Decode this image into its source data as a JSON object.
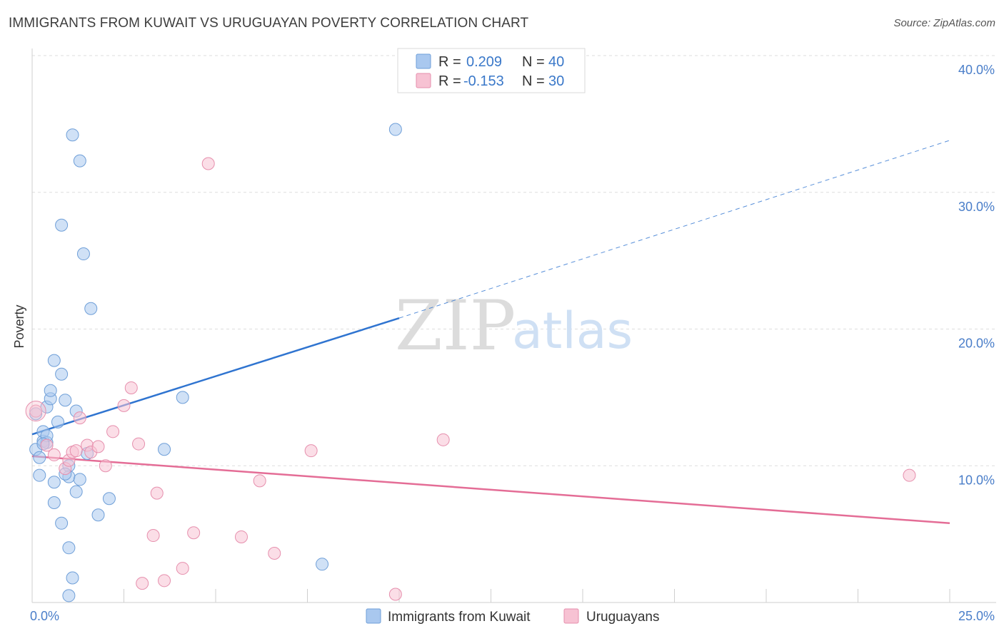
{
  "chart_data": {
    "type": "scatter",
    "title": "IMMIGRANTS FROM KUWAIT VS URUGUAYAN POVERTY CORRELATION CHART",
    "source": "Source: ZipAtlas.com",
    "xlabel": "",
    "ylabel": "Poverty",
    "xlim": [
      0,
      25
    ],
    "ylim": [
      0,
      40
    ],
    "x_ticks": [
      {
        "value": 0,
        "label": "0.0%"
      },
      {
        "value": 25,
        "label": "25.0%"
      }
    ],
    "y_ticks": [
      {
        "value": 10,
        "label": "10.0%"
      },
      {
        "value": 20,
        "label": "20.0%"
      },
      {
        "value": 30,
        "label": "30.0%"
      },
      {
        "value": 40,
        "label": "40.0%"
      }
    ],
    "watermark": {
      "zip": "ZIP",
      "atlas": "atlas"
    },
    "legend": {
      "r_label": "R =",
      "n_label": "N =",
      "entries": [
        {
          "r": "0.209",
          "n": "40"
        },
        {
          "r": "-0.153",
          "n": "30"
        }
      ]
    },
    "series": [
      {
        "name": "Immigrants from Kuwait",
        "color": "#a9c8ef",
        "stroke": "#6f9fd8",
        "line_color": "#2f74d0",
        "trend": {
          "x0": 0,
          "y0": 12.3,
          "x1": 10,
          "y1": 20.8,
          "dashed_to_x": 25,
          "dashed_to_y": 33.8
        },
        "points": [
          [
            0.1,
            11.2
          ],
          [
            0.1,
            13.8
          ],
          [
            0.2,
            10.6
          ],
          [
            0.3,
            11.8
          ],
          [
            0.3,
            12.5
          ],
          [
            0.2,
            9.3
          ],
          [
            0.4,
            11.7
          ],
          [
            0.4,
            14.3
          ],
          [
            0.4,
            12.2
          ],
          [
            0.5,
            14.9
          ],
          [
            0.5,
            15.5
          ],
          [
            0.6,
            17.7
          ],
          [
            0.6,
            7.3
          ],
          [
            0.6,
            8.8
          ],
          [
            0.7,
            13.2
          ],
          [
            0.8,
            27.6
          ],
          [
            0.8,
            5.8
          ],
          [
            0.8,
            16.7
          ],
          [
            0.9,
            14.8
          ],
          [
            1.0,
            10.0
          ],
          [
            1.0,
            9.2
          ],
          [
            1.0,
            4.0
          ],
          [
            1.1,
            1.8
          ],
          [
            1.0,
            0.5
          ],
          [
            1.1,
            34.2
          ],
          [
            1.2,
            14.0
          ],
          [
            1.2,
            8.1
          ],
          [
            1.3,
            9.0
          ],
          [
            1.3,
            32.3
          ],
          [
            1.4,
            25.5
          ],
          [
            1.5,
            10.9
          ],
          [
            1.6,
            21.5
          ],
          [
            1.8,
            6.4
          ],
          [
            2.1,
            7.6
          ],
          [
            3.6,
            11.2
          ],
          [
            4.1,
            15.0
          ],
          [
            7.9,
            2.8
          ],
          [
            9.9,
            34.6
          ],
          [
            0.3,
            11.6
          ],
          [
            0.9,
            9.4
          ]
        ]
      },
      {
        "name": "Uruguayans",
        "color": "#f7c2d3",
        "stroke": "#e68fad",
        "line_color": "#e46d96",
        "trend": {
          "x0": 0,
          "y0": 10.7,
          "x1": 25,
          "y1": 5.8
        },
        "points": [
          [
            0.1,
            14.0
          ],
          [
            0.4,
            11.5
          ],
          [
            0.6,
            10.8
          ],
          [
            0.9,
            9.8
          ],
          [
            1.0,
            10.4
          ],
          [
            1.1,
            11.0
          ],
          [
            1.3,
            13.5
          ],
          [
            1.5,
            11.5
          ],
          [
            1.6,
            11.0
          ],
          [
            1.8,
            11.4
          ],
          [
            2.0,
            10.0
          ],
          [
            2.2,
            12.5
          ],
          [
            2.5,
            14.4
          ],
          [
            2.7,
            15.7
          ],
          [
            2.9,
            11.6
          ],
          [
            3.0,
            1.4
          ],
          [
            3.3,
            4.9
          ],
          [
            3.4,
            8.0
          ],
          [
            3.6,
            1.6
          ],
          [
            4.1,
            2.5
          ],
          [
            4.4,
            5.1
          ],
          [
            4.8,
            32.1
          ],
          [
            5.7,
            4.8
          ],
          [
            6.2,
            8.9
          ],
          [
            6.6,
            3.6
          ],
          [
            7.6,
            11.1
          ],
          [
            9.9,
            0.6
          ],
          [
            11.2,
            11.9
          ],
          [
            23.9,
            9.3
          ],
          [
            1.2,
            11.1
          ]
        ]
      }
    ]
  }
}
